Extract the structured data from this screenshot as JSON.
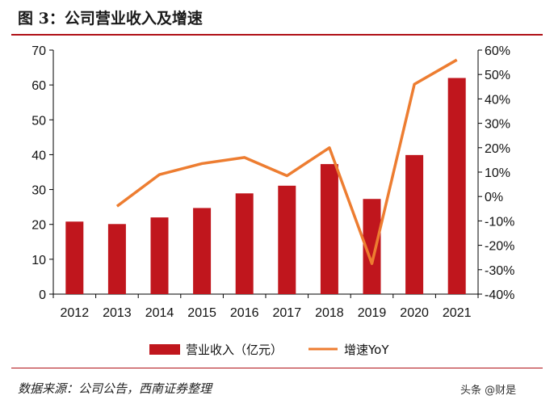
{
  "title": "图 3：公司营业收入及增速",
  "source": "数据来源：公司公告，西南证券整理",
  "watermark": "头条 @财是",
  "colors": {
    "bar": "#c0161d",
    "line": "#ed7d31",
    "accent": "#b01117"
  },
  "chart_data": {
    "type": "bar",
    "categories": [
      "2012",
      "2013",
      "2014",
      "2015",
      "2016",
      "2017",
      "2018",
      "2019",
      "2020",
      "2021"
    ],
    "series": [
      {
        "name": "营业收入（亿元）",
        "type": "bar",
        "axis": "left",
        "values": [
          20.8,
          20.1,
          22.0,
          24.7,
          28.9,
          31.1,
          37.3,
          27.3,
          39.9,
          62.0
        ]
      },
      {
        "name": "增速YoY",
        "type": "line",
        "axis": "right",
        "values": [
          null,
          -4,
          9,
          13.5,
          16,
          8.5,
          20,
          -27.5,
          46,
          56
        ]
      }
    ],
    "y_left": {
      "lim": [
        0,
        70
      ],
      "ticks": [
        "0",
        "10",
        "20",
        "30",
        "40",
        "50",
        "60",
        "70"
      ]
    },
    "y_right": {
      "lim": [
        -40,
        60
      ],
      "ticks": [
        "-40%",
        "-30%",
        "-20%",
        "-10%",
        "0%",
        "10%",
        "20%",
        "30%",
        "40%",
        "50%",
        "60%"
      ]
    },
    "grid": false,
    "legend": "bottom-center"
  }
}
